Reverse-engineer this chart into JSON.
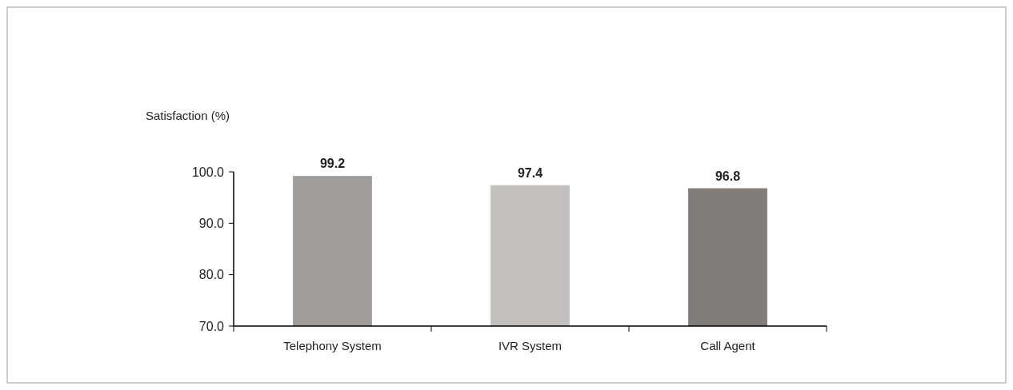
{
  "chart_data": {
    "type": "bar",
    "ylabel": "Satisfaction (%)",
    "categories": [
      "Telephony System",
      "IVR System",
      "Call Agent"
    ],
    "values": [
      99.2,
      97.4,
      96.8
    ],
    "colors": [
      "#a09c9a",
      "#c1c0be",
      "#807c7a"
    ],
    "ylim": [
      70,
      100
    ],
    "yticks": [
      {
        "value": 70,
        "label": "70.0"
      },
      {
        "value": 80,
        "label": "80.0"
      },
      {
        "value": 90,
        "label": "90.0"
      },
      {
        "value": 100,
        "label": "100.0"
      }
    ],
    "data_labels": true,
    "grid": false
  }
}
